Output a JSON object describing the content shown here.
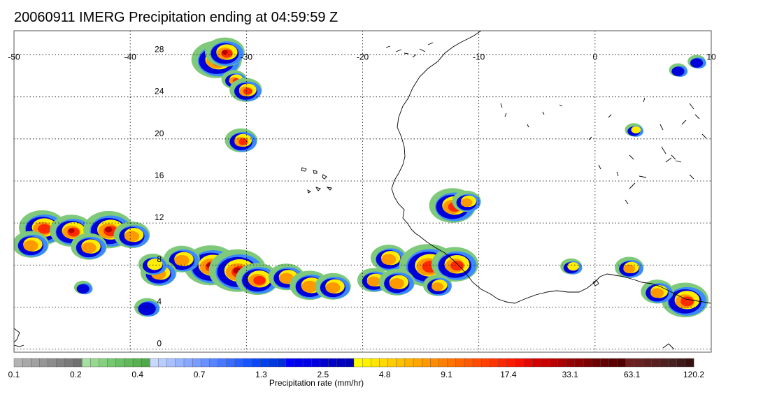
{
  "title": "20060911 IMERG Precipitation ending at 04:59:59 Z",
  "map": {
    "lon_range": [
      -50,
      10
    ],
    "lat_range": [
      -0.3,
      30.3
    ],
    "lon_ticks": [
      -50,
      -40,
      -30,
      -20,
      -10,
      0,
      10
    ],
    "lat_ticks": [
      0,
      4,
      8,
      12,
      16,
      20,
      24,
      28
    ],
    "grid": "dotted",
    "coastline_color": "#000000"
  },
  "colorbar": {
    "title": "Precipitation rate (mm/hr)",
    "labels": [
      "0.1",
      "0.2",
      "0.4",
      "0.7",
      "1.3",
      "2.5",
      "4.8",
      "9.1",
      "17.4",
      "33.1",
      "63.1",
      "120.2"
    ],
    "colors": [
      "#b3b3b3",
      "#a8a8a8",
      "#a0a0a0",
      "#969696",
      "#8c8c8c",
      "#828282",
      "#7a7a7a",
      "#707070",
      "#a6e0a0",
      "#96d890",
      "#86d080",
      "#76c870",
      "#6ac064",
      "#60b858",
      "#58b050",
      "#50a848",
      "#c8d8ff",
      "#b8ccff",
      "#a8c0ff",
      "#98b4ff",
      "#88a8ff",
      "#789cff",
      "#6890ff",
      "#5884ff",
      "#4878ff",
      "#386cff",
      "#2860ff",
      "#1854ff",
      "#0848ff",
      "#0040f0",
      "#0038e0",
      "#0030d0",
      "#0000ff",
      "#0000f0",
      "#0000e6",
      "#0000dc",
      "#0000d2",
      "#0000c8",
      "#0000be",
      "#0000b4",
      "#ffff00",
      "#fff200",
      "#ffe600",
      "#ffd900",
      "#ffcc00",
      "#ffc000",
      "#ffb300",
      "#ffa600",
      "#ff9900",
      "#ff8c00",
      "#ff8000",
      "#ff7300",
      "#ff6600",
      "#ff5900",
      "#ff4c00",
      "#ff4000",
      "#ff3300",
      "#ff2600",
      "#ff1a00",
      "#f51000",
      "#e60800",
      "#d70000",
      "#c80000",
      "#b90000",
      "#aa0000",
      "#9b0000",
      "#8c0000",
      "#7d0000",
      "#6e0000",
      "#640000",
      "#5a0000",
      "#500000",
      "#6e1e1e",
      "#682020",
      "#602020",
      "#582020",
      "#502020",
      "#482020",
      "#401818",
      "#381010"
    ]
  },
  "precip_cells": [
    {
      "lon": -32.5,
      "lat": 27.5,
      "r": 1.4,
      "peak": 9
    },
    {
      "lon": -31.8,
      "lat": 28.2,
      "r": 1.1,
      "peak": 10
    },
    {
      "lon": -31.0,
      "lat": 25.6,
      "r": 0.7,
      "peak": 8
    },
    {
      "lon": -30.0,
      "lat": 24.6,
      "r": 0.9,
      "peak": 8
    },
    {
      "lon": -30.4,
      "lat": 19.8,
      "r": 0.9,
      "peak": 8
    },
    {
      "lon": -47.5,
      "lat": 11.5,
      "r": 1.3,
      "peak": 8
    },
    {
      "lon": -45.0,
      "lat": 11.2,
      "r": 1.2,
      "peak": 9
    },
    {
      "lon": -41.8,
      "lat": 11.3,
      "r": 1.4,
      "peak": 9
    },
    {
      "lon": -39.8,
      "lat": 10.8,
      "r": 1.0,
      "peak": 7
    },
    {
      "lon": -48.5,
      "lat": 9.9,
      "r": 1.0,
      "peak": 6
    },
    {
      "lon": -43.5,
      "lat": 9.7,
      "r": 1.0,
      "peak": 6
    },
    {
      "lon": -33.0,
      "lat": 7.9,
      "r": 1.5,
      "peak": 9
    },
    {
      "lon": -30.7,
      "lat": 7.4,
      "r": 1.6,
      "peak": 9
    },
    {
      "lon": -29.0,
      "lat": 6.6,
      "r": 1.2,
      "peak": 8
    },
    {
      "lon": -35.5,
      "lat": 8.5,
      "r": 1.0,
      "peak": 6
    },
    {
      "lon": -37.5,
      "lat": 7.2,
      "r": 1.0,
      "peak": 6
    },
    {
      "lon": -38.0,
      "lat": 8.0,
      "r": 0.8,
      "peak": 5
    },
    {
      "lon": -26.5,
      "lat": 6.8,
      "r": 1.0,
      "peak": 6
    },
    {
      "lon": -24.5,
      "lat": 6.0,
      "r": 1.1,
      "peak": 7
    },
    {
      "lon": -22.5,
      "lat": 5.9,
      "r": 1.0,
      "peak": 7
    },
    {
      "lon": -19.0,
      "lat": 6.5,
      "r": 0.9,
      "peak": 6
    },
    {
      "lon": -17.7,
      "lat": 8.6,
      "r": 1.0,
      "peak": 7
    },
    {
      "lon": -14.3,
      "lat": 7.9,
      "r": 1.6,
      "peak": 8
    },
    {
      "lon": -12.0,
      "lat": 8.0,
      "r": 1.3,
      "peak": 8
    },
    {
      "lon": -17.0,
      "lat": 6.3,
      "r": 1.0,
      "peak": 7
    },
    {
      "lon": -13.5,
      "lat": 6.0,
      "r": 0.8,
      "peak": 6
    },
    {
      "lon": -12.2,
      "lat": 13.6,
      "r": 1.3,
      "peak": 8
    },
    {
      "lon": -11.0,
      "lat": 14.0,
      "r": 0.8,
      "peak": 7
    },
    {
      "lon": 7.8,
      "lat": 4.6,
      "r": 1.3,
      "peak": 8
    },
    {
      "lon": 5.4,
      "lat": 5.4,
      "r": 0.9,
      "peak": 6
    },
    {
      "lon": 3.0,
      "lat": 7.7,
      "r": 0.8,
      "peak": 6
    },
    {
      "lon": -2.0,
      "lat": 7.8,
      "r": 0.6,
      "peak": 5
    },
    {
      "lon": 3.4,
      "lat": 20.8,
      "r": 0.5,
      "peak": 5
    },
    {
      "lon": 7.2,
      "lat": 26.5,
      "r": 0.5,
      "peak": 4
    },
    {
      "lon": 8.8,
      "lat": 27.3,
      "r": 0.5,
      "peak": 4
    },
    {
      "lon": -38.5,
      "lat": 3.9,
      "r": 0.7,
      "peak": 4
    },
    {
      "lon": -44.0,
      "lat": 5.8,
      "r": 0.5,
      "peak": 4
    }
  ]
}
